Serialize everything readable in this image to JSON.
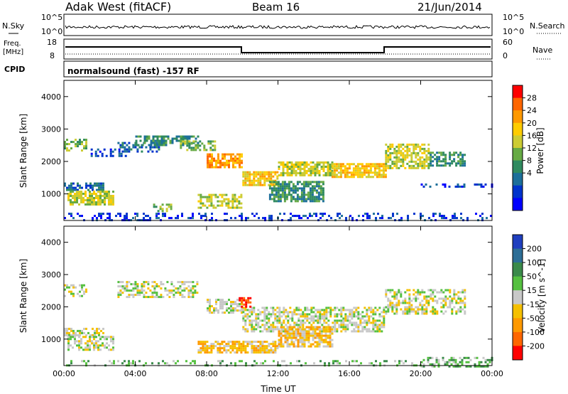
{
  "header": {
    "station": "Adak West (fitACF)",
    "beam": "Beam 16",
    "date": "21/Jun/2014"
  },
  "panels": {
    "nsky": {
      "left_label": "N.Sky",
      "right_label": "N.Search",
      "left_ticks": [
        "10^5",
        "10^0"
      ],
      "right_ticks": [
        "10^5",
        "10^0"
      ]
    },
    "freq": {
      "left_label_1": "Freq.",
      "left_label_2": "[MHz]",
      "right_label": "Nave",
      "left_ticks": [
        "18",
        "8"
      ],
      "right_ticks": [
        "60",
        "0"
      ]
    },
    "cpid": {
      "label": "CPID",
      "value": "normalsound (fast) -157 RF"
    }
  },
  "chart_data": [
    {
      "type": "heatmap",
      "title": "",
      "quantity": "Power",
      "ylabel": "Slant Range [km]",
      "colorbar_label": "Power [dB]",
      "colorbar_ticks": [
        "28",
        "24",
        "20",
        "16",
        "12",
        "8",
        "4"
      ],
      "colorbar_colors": [
        "#ff0000",
        "#ff6600",
        "#ff9900",
        "#ffcc00",
        "#cccc33",
        "#66aa44",
        "#2f8a5f",
        "#1c6f9a",
        "#0033cc",
        "#0000ff"
      ],
      "ylim": [
        180,
        4500
      ],
      "yticks": [
        "1000",
        "2000",
        "3000",
        "4000"
      ],
      "xlim_hours": [
        0,
        24
      ],
      "xticks": [
        "00:00",
        "04:00",
        "08:00",
        "12:00",
        "16:00",
        "20:00",
        "00:00"
      ],
      "bands": [
        {
          "t_start": 0.0,
          "t_end": 1.2,
          "range_start": 2350,
          "range_end": 2700,
          "level": 5,
          "density": 0.55
        },
        {
          "t_start": 0.0,
          "t_end": 2.2,
          "range_start": 1150,
          "range_end": 1350,
          "level": 7,
          "density": 0.65
        },
        {
          "t_start": 0.2,
          "t_end": 2.8,
          "range_start": 650,
          "range_end": 1100,
          "level": 4,
          "density": 0.75
        },
        {
          "t_start": 1.5,
          "t_end": 3.5,
          "range_start": 2150,
          "range_end": 2400,
          "level": 8,
          "density": 0.45
        },
        {
          "t_start": 3.0,
          "t_end": 5.5,
          "range_start": 2300,
          "range_end": 2600,
          "level": 7,
          "density": 0.5
        },
        {
          "t_start": 4.0,
          "t_end": 7.5,
          "range_start": 2500,
          "range_end": 2800,
          "level": 6,
          "density": 0.6
        },
        {
          "t_start": 6.5,
          "t_end": 8.5,
          "range_start": 2350,
          "range_end": 2650,
          "level": 5,
          "density": 0.6
        },
        {
          "t_start": 8.0,
          "t_end": 10.0,
          "range_start": 1850,
          "range_end": 2250,
          "level": 2,
          "density": 0.75
        },
        {
          "t_start": 7.5,
          "t_end": 10.0,
          "range_start": 600,
          "range_end": 1000,
          "level": 4,
          "density": 0.65
        },
        {
          "t_start": 10.0,
          "t_end": 12.0,
          "range_start": 1250,
          "range_end": 1700,
          "level": 3,
          "density": 0.8
        },
        {
          "t_start": 12.0,
          "t_end": 15.0,
          "range_start": 1600,
          "range_end": 2000,
          "level": 4,
          "density": 0.75
        },
        {
          "t_start": 11.5,
          "t_end": 14.5,
          "range_start": 800,
          "range_end": 1400,
          "level": 6,
          "density": 0.7
        },
        {
          "t_start": 15.0,
          "t_end": 18.0,
          "range_start": 1500,
          "range_end": 1950,
          "level": 3,
          "density": 0.8
        },
        {
          "t_start": 18.0,
          "t_end": 20.5,
          "range_start": 1800,
          "range_end": 2550,
          "level": 4,
          "density": 0.7
        },
        {
          "t_start": 20.5,
          "t_end": 22.5,
          "range_start": 1900,
          "range_end": 2300,
          "level": 6,
          "density": 0.6
        },
        {
          "t_start": 20.0,
          "t_end": 24.0,
          "range_start": 1200,
          "range_end": 1320,
          "level": 8,
          "density": 0.35
        },
        {
          "t_start": 0.0,
          "t_end": 24.0,
          "range_start": 180,
          "range_end": 420,
          "level": 8,
          "density": 0.3
        },
        {
          "t_start": 5.0,
          "t_end": 6.0,
          "range_start": 450,
          "range_end": 700,
          "level": 5,
          "density": 0.4
        }
      ]
    },
    {
      "type": "heatmap",
      "title": "",
      "quantity": "Velocity",
      "ylabel": "Slant Range [km]",
      "colorbar_label": "Velocity [m s^-1]",
      "colorbar_ticks": [
        "200",
        "100",
        "50",
        "15",
        "-15",
        "-50",
        "-100",
        "-200"
      ],
      "colorbar_colors": [
        "#1f3fbf",
        "#2d6e96",
        "#3a8a4a",
        "#55c040",
        "#c8c8c8",
        "#f5c000",
        "#ff9900",
        "#ff6600",
        "#ff0000"
      ],
      "ylim": [
        180,
        4500
      ],
      "yticks": [
        "1000",
        "2000",
        "3000",
        "4000"
      ],
      "xlim_hours": [
        0,
        24
      ],
      "xticks": [
        "00:00",
        "04:00",
        "08:00",
        "12:00",
        "16:00",
        "20:00",
        "00:00"
      ],
      "xlabel": "Time UT",
      "bands": [
        {
          "t_start": 0.0,
          "t_end": 1.2,
          "range_start": 2350,
          "range_end": 2700,
          "level": 4,
          "density": 0.5
        },
        {
          "t_start": 0.0,
          "t_end": 2.2,
          "range_start": 1150,
          "range_end": 1350,
          "level": 4,
          "density": 0.6
        },
        {
          "t_start": 0.2,
          "t_end": 2.8,
          "range_start": 650,
          "range_end": 1100,
          "level": 4,
          "density": 0.65
        },
        {
          "t_start": 3.0,
          "t_end": 7.5,
          "range_start": 2300,
          "range_end": 2800,
          "level": 4,
          "density": 0.55
        },
        {
          "t_start": 8.0,
          "t_end": 10.0,
          "range_start": 1850,
          "range_end": 2250,
          "level": 4,
          "density": 0.6
        },
        {
          "t_start": 10.0,
          "t_end": 18.0,
          "range_start": 1250,
          "range_end": 2000,
          "level": 4,
          "density": 0.6
        },
        {
          "t_start": 7.5,
          "t_end": 12.0,
          "range_start": 600,
          "range_end": 950,
          "level": 5,
          "density": 0.8
        },
        {
          "t_start": 12.0,
          "t_end": 15.0,
          "range_start": 800,
          "range_end": 1400,
          "level": 5,
          "density": 0.75
        },
        {
          "t_start": 18.0,
          "t_end": 22.5,
          "range_start": 1800,
          "range_end": 2550,
          "level": 4,
          "density": 0.55
        },
        {
          "t_start": 9.8,
          "t_end": 10.5,
          "range_start": 2000,
          "range_end": 2300,
          "level": 8,
          "density": 0.6
        },
        {
          "t_start": 20.0,
          "t_end": 24.0,
          "range_start": 180,
          "range_end": 450,
          "level": 3,
          "density": 0.5
        },
        {
          "t_start": 0.0,
          "t_end": 20.0,
          "range_start": 180,
          "range_end": 350,
          "level": 3,
          "density": 0.25
        }
      ]
    }
  ]
}
